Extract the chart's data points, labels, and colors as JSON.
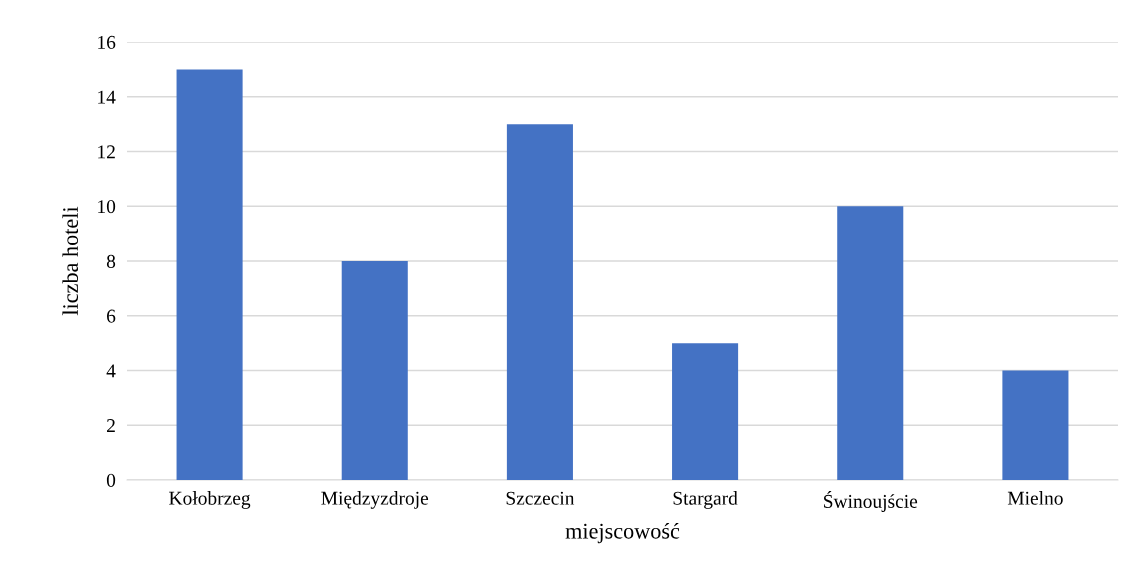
{
  "chart_data": {
    "type": "bar",
    "xlabel": "miejscowość",
    "ylabel": "liczba hoteli",
    "categories": [
      "Kołobrzeg",
      "Międzyzdroje",
      "Szczecin",
      "Stargard",
      "Świnoujście",
      "Mielno"
    ],
    "values": [
      15,
      8,
      13,
      5,
      10,
      4
    ],
    "color": "#4472c4",
    "ylim": [
      0,
      16
    ],
    "yticks": [
      0,
      2,
      4,
      6,
      8,
      10,
      12,
      14,
      16
    ],
    "grid": "y"
  }
}
